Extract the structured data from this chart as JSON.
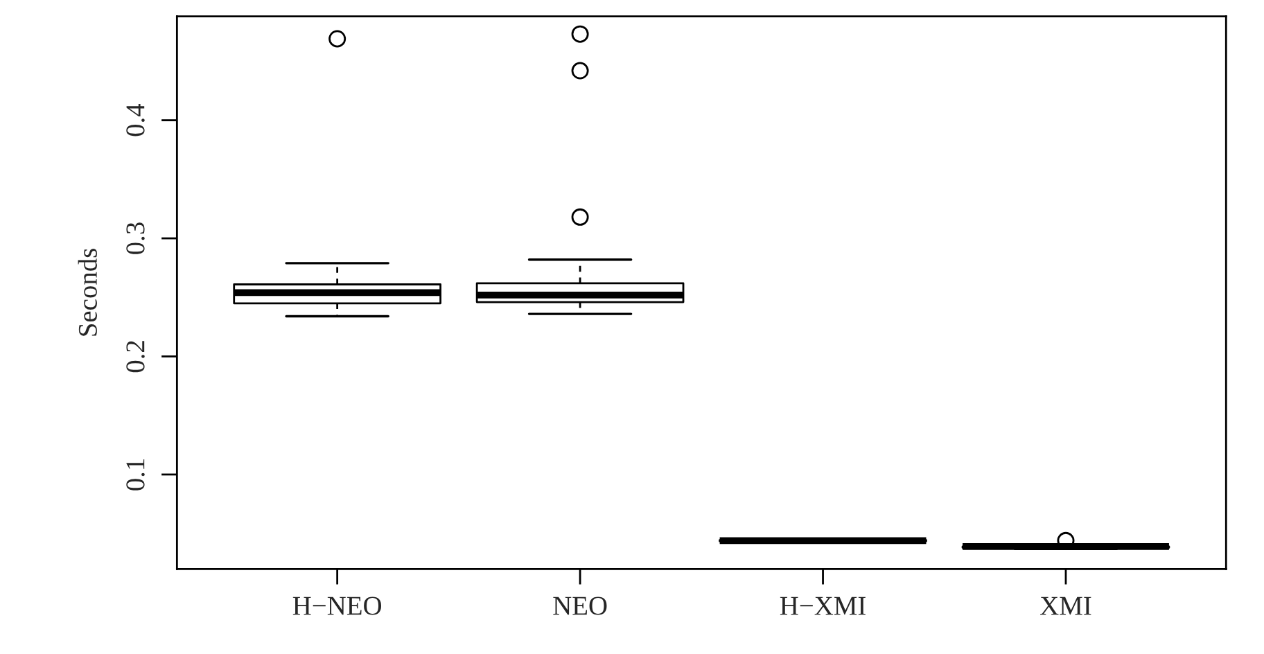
{
  "chart_data": {
    "type": "box",
    "ylabel": "Seconds",
    "categories": [
      "H−NEO",
      "NEO",
      "H−XMI",
      "XMI"
    ],
    "boxes": [
      {
        "low": 0.234,
        "q1": 0.245,
        "median": 0.254,
        "q3": 0.261,
        "high": 0.279,
        "outliers": [
          0.469
        ]
      },
      {
        "low": 0.236,
        "q1": 0.246,
        "median": 0.252,
        "q3": 0.262,
        "high": 0.282,
        "outliers": [
          0.473,
          0.442,
          0.318
        ]
      },
      {
        "low": 0.043,
        "q1": 0.0435,
        "median": 0.044,
        "q3": 0.0445,
        "high": 0.045
      },
      {
        "low": 0.037,
        "q1": 0.038,
        "median": 0.039,
        "q3": 0.039,
        "high": 0.04,
        "outliers": [
          0.044
        ]
      }
    ],
    "ylim": [
      0.02,
      0.488
    ],
    "yticks": [
      0.1,
      0.2,
      0.3,
      0.4
    ],
    "grid": false,
    "legend": false
  }
}
